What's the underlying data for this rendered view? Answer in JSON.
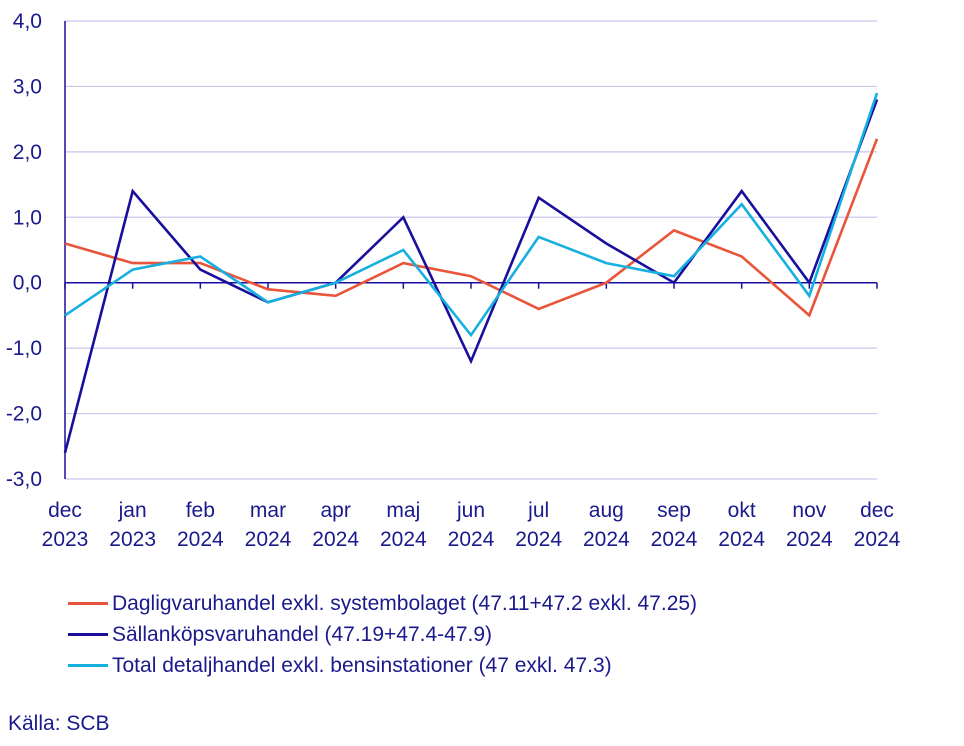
{
  "chart_data": {
    "type": "line",
    "categories": [
      [
        "dec",
        "2023"
      ],
      [
        "jan",
        "2023"
      ],
      [
        "feb",
        "2024"
      ],
      [
        "mar",
        "2024"
      ],
      [
        "apr",
        "2024"
      ],
      [
        "maj",
        "2024"
      ],
      [
        "jun",
        "2024"
      ],
      [
        "jul",
        "2024"
      ],
      [
        "aug",
        "2024"
      ],
      [
        "sep",
        "2024"
      ],
      [
        "okt",
        "2024"
      ],
      [
        "nov",
        "2024"
      ],
      [
        "dec",
        "2024"
      ]
    ],
    "ylim": [
      -3,
      4
    ],
    "yticks": [
      "-3,0",
      "-2,0",
      "-1,0",
      "0,0",
      "1,0",
      "2,0",
      "3,0",
      "4,0"
    ],
    "grid": true,
    "series": [
      {
        "name": "Dagligvaruhandel exkl. systembolaget (47.11+47.2 exkl. 47.25)",
        "color": "#e8553a",
        "values": [
          0.6,
          0.3,
          0.3,
          -0.1,
          -0.2,
          0.3,
          0.1,
          -0.4,
          0.0,
          0.8,
          0.4,
          -0.5,
          2.2
        ]
      },
      {
        "name": "Sällanköpsvaruhandel (47.19+47.4-47.9)",
        "color": "#1a0f9c",
        "values": [
          -2.6,
          1.4,
          0.2,
          -0.3,
          0.0,
          1.0,
          -1.2,
          1.3,
          0.6,
          0.0,
          1.4,
          0.0,
          2.8
        ]
      },
      {
        "name": "Total detaljhandel exkl. bensinstationer (47 exkl. 47.3)",
        "color": "#16b0e0",
        "values": [
          -0.5,
          0.2,
          0.4,
          -0.3,
          0.0,
          0.5,
          -0.8,
          0.7,
          0.3,
          0.1,
          1.2,
          -0.2,
          2.9
        ]
      }
    ]
  },
  "source": "Källa: SCB"
}
